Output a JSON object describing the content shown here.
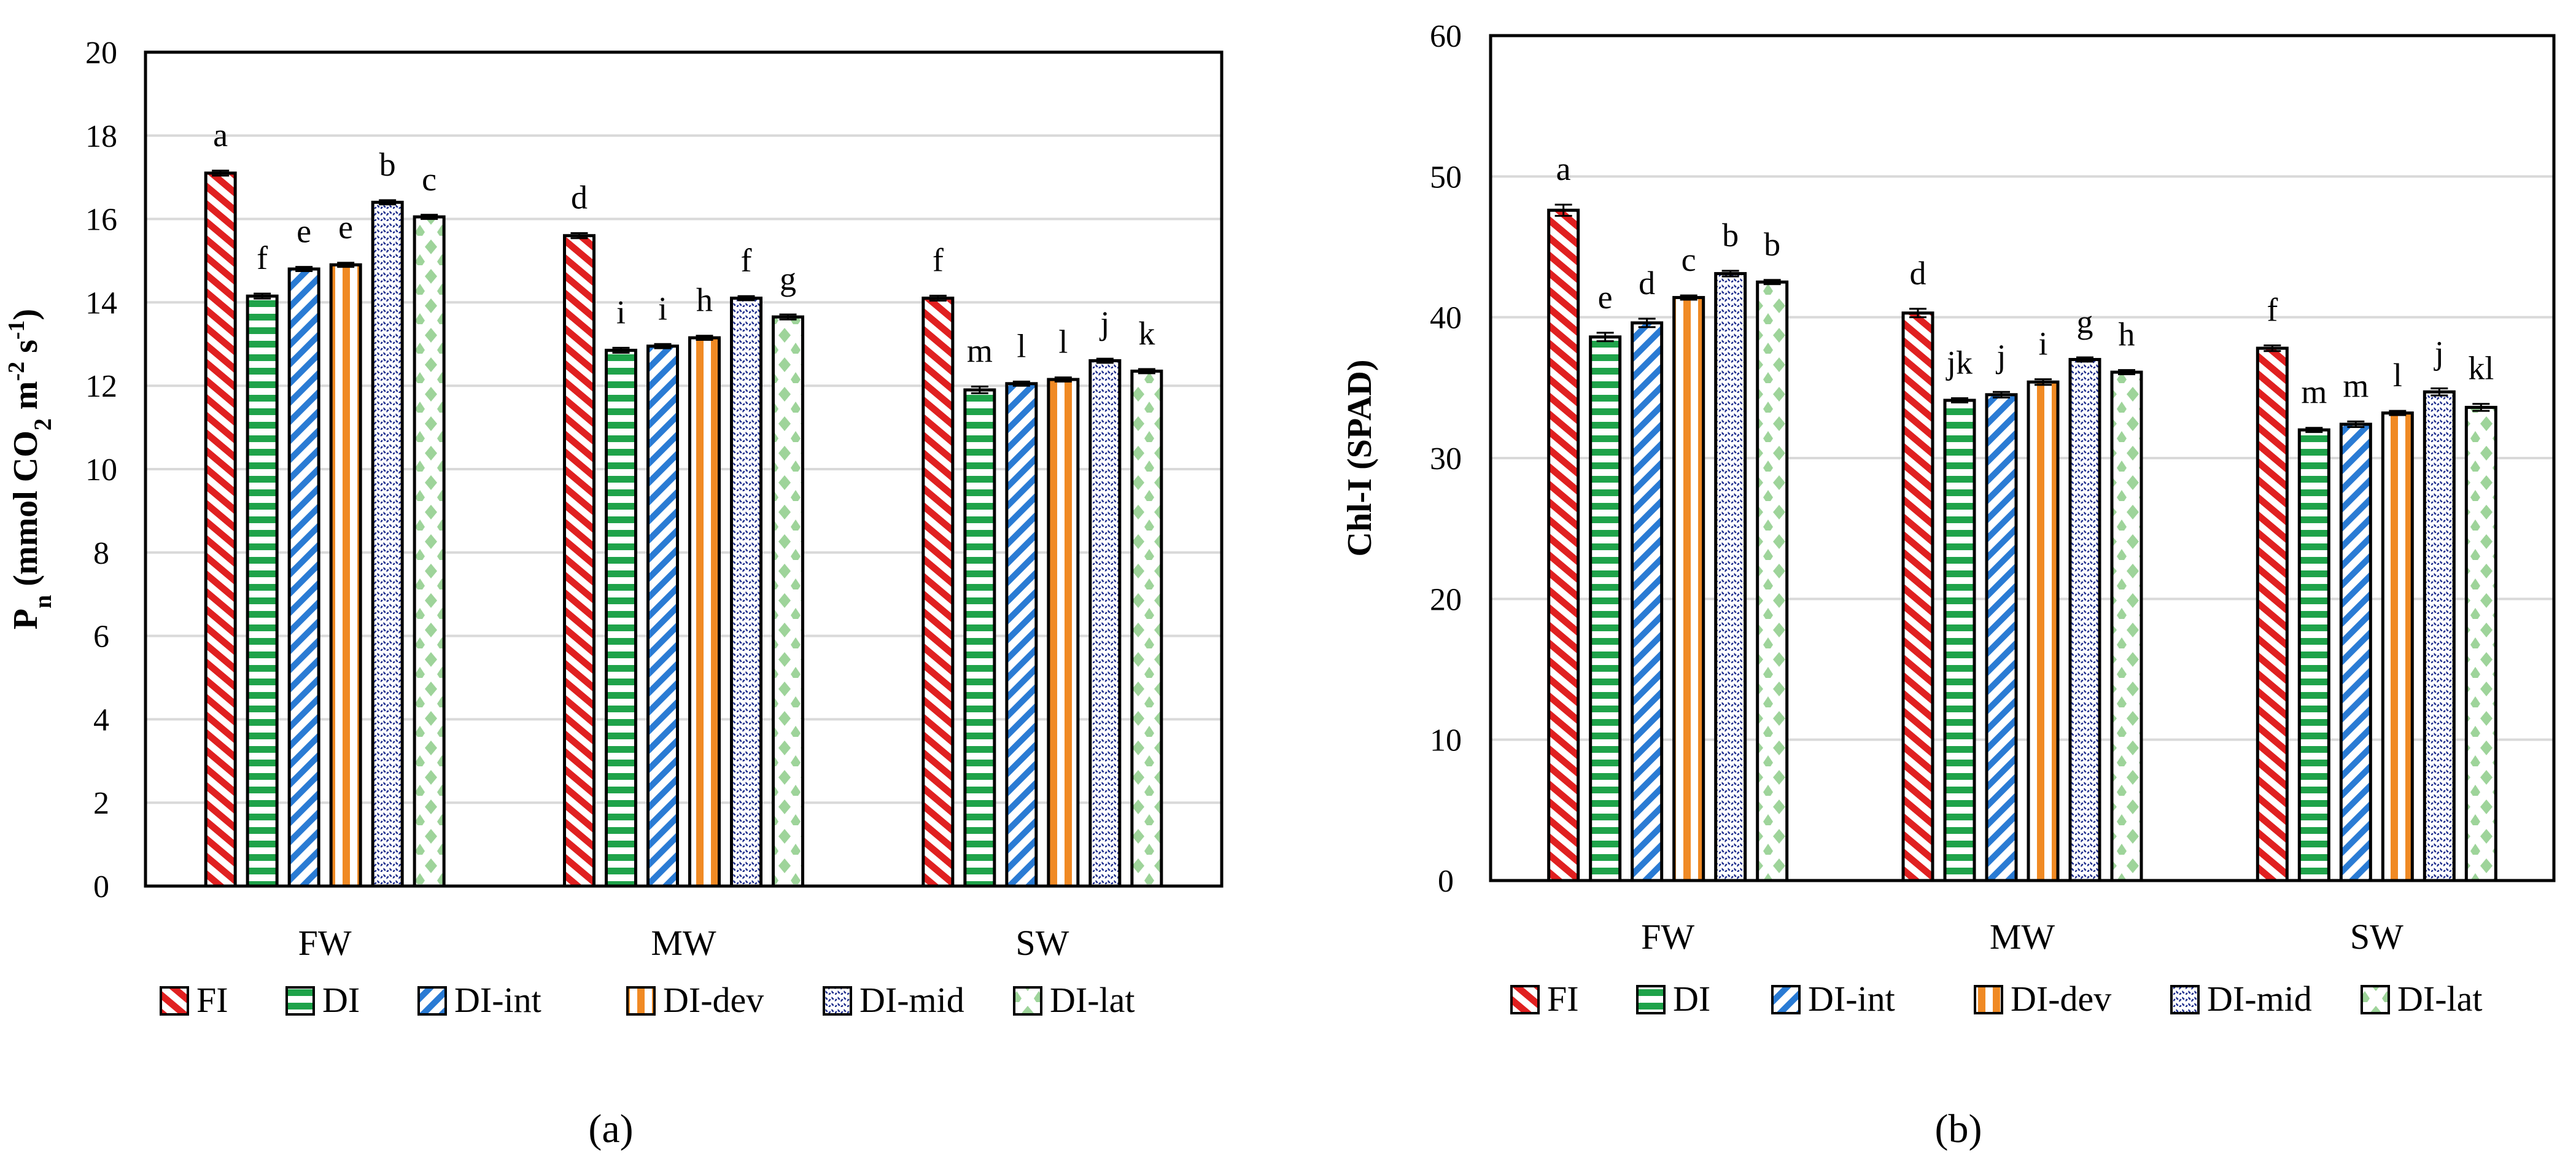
{
  "colors": {
    "FI": "#e02020",
    "DI": "#1fa34a",
    "DI-int": "#2a7bd4",
    "DI-dev": "#f08a24",
    "DI-mid": "#1a2a8a",
    "DI-lat": "#9ed49a"
  },
  "chart_data": [
    {
      "type": "bar",
      "panel": "a",
      "panel_label": "(a)",
      "ylabel_main": "P",
      "ylabel_sub": "n",
      "ylabel_rest": " (mmol CO",
      "ylabel_sub2": "2",
      "ylabel_tail": " m",
      "ylabel_sup1": "-2",
      "ylabel_mid": " s",
      "ylabel_sup2": "-1",
      "ylabel_end": ")",
      "ylim": [
        0,
        20
      ],
      "yticks": [
        "0",
        "2",
        "4",
        "6",
        "8",
        "10",
        "12",
        "14",
        "16",
        "18",
        "20"
      ],
      "categories": [
        "FW",
        "MW",
        "SW"
      ],
      "series": [
        {
          "name": "FI",
          "values": [
            17.1,
            15.6,
            14.1
          ],
          "errors": [
            0.06,
            0.06,
            0.06
          ],
          "letters": [
            "a",
            "d",
            "f"
          ]
        },
        {
          "name": "DI",
          "values": [
            14.15,
            12.85,
            11.9
          ],
          "errors": [
            0.06,
            0.06,
            0.08
          ],
          "letters": [
            "f",
            "i",
            "m"
          ]
        },
        {
          "name": "DI-int",
          "values": [
            14.8,
            12.95,
            12.05
          ],
          "errors": [
            0.05,
            0.05,
            0.05
          ],
          "letters": [
            "e",
            "i",
            "l"
          ]
        },
        {
          "name": "DI-dev",
          "values": [
            14.9,
            13.15,
            12.15
          ],
          "errors": [
            0.05,
            0.05,
            0.05
          ],
          "letters": [
            "e",
            "h",
            "l"
          ]
        },
        {
          "name": "DI-mid",
          "values": [
            16.4,
            14.1,
            12.6
          ],
          "errors": [
            0.05,
            0.05,
            0.05
          ],
          "letters": [
            "b",
            "f",
            "j"
          ]
        },
        {
          "name": "DI-lat",
          "values": [
            16.05,
            13.65,
            12.35
          ],
          "errors": [
            0.05,
            0.06,
            0.05
          ],
          "letters": [
            "c",
            "g",
            "k"
          ]
        }
      ],
      "legend": [
        "FI",
        "DI",
        "DI-int",
        "DI-dev",
        "DI-mid",
        "DI-lat"
      ]
    },
    {
      "type": "bar",
      "panel": "b",
      "panel_label": "(b)",
      "ylabel": "Chl-I (SPAD)",
      "ylim": [
        0,
        60
      ],
      "yticks": [
        "0",
        "10",
        "20",
        "30",
        "40",
        "50",
        "60"
      ],
      "categories": [
        "FW",
        "MW",
        "SW"
      ],
      "series": [
        {
          "name": "FI",
          "values": [
            47.6,
            40.3,
            37.8
          ],
          "errors": [
            0.4,
            0.3,
            0.2
          ],
          "letters": [
            "a",
            "d",
            "f"
          ]
        },
        {
          "name": "DI",
          "values": [
            38.6,
            34.1,
            32.0
          ],
          "errors": [
            0.3,
            0.15,
            0.15
          ],
          "letters": [
            "e",
            "jk",
            "m"
          ]
        },
        {
          "name": "DI-int",
          "values": [
            39.6,
            34.5,
            32.4
          ],
          "errors": [
            0.3,
            0.2,
            0.2
          ],
          "letters": [
            "d",
            "j",
            "m"
          ]
        },
        {
          "name": "DI-dev",
          "values": [
            41.4,
            35.4,
            33.2
          ],
          "errors": [
            0.15,
            0.2,
            0.15
          ],
          "letters": [
            "c",
            "i",
            "l"
          ]
        },
        {
          "name": "DI-mid",
          "values": [
            43.1,
            37.0,
            34.7
          ],
          "errors": [
            0.2,
            0.15,
            0.25
          ],
          "letters": [
            "b",
            "g",
            "j"
          ]
        },
        {
          "name": "DI-lat",
          "values": [
            42.5,
            36.1,
            33.6
          ],
          "errors": [
            0.15,
            0.15,
            0.25
          ],
          "letters": [
            "b",
            "h",
            "kl"
          ]
        }
      ],
      "legend": [
        "FI",
        "DI",
        "DI-int",
        "DI-dev",
        "DI-mid",
        "DI-lat"
      ]
    }
  ]
}
